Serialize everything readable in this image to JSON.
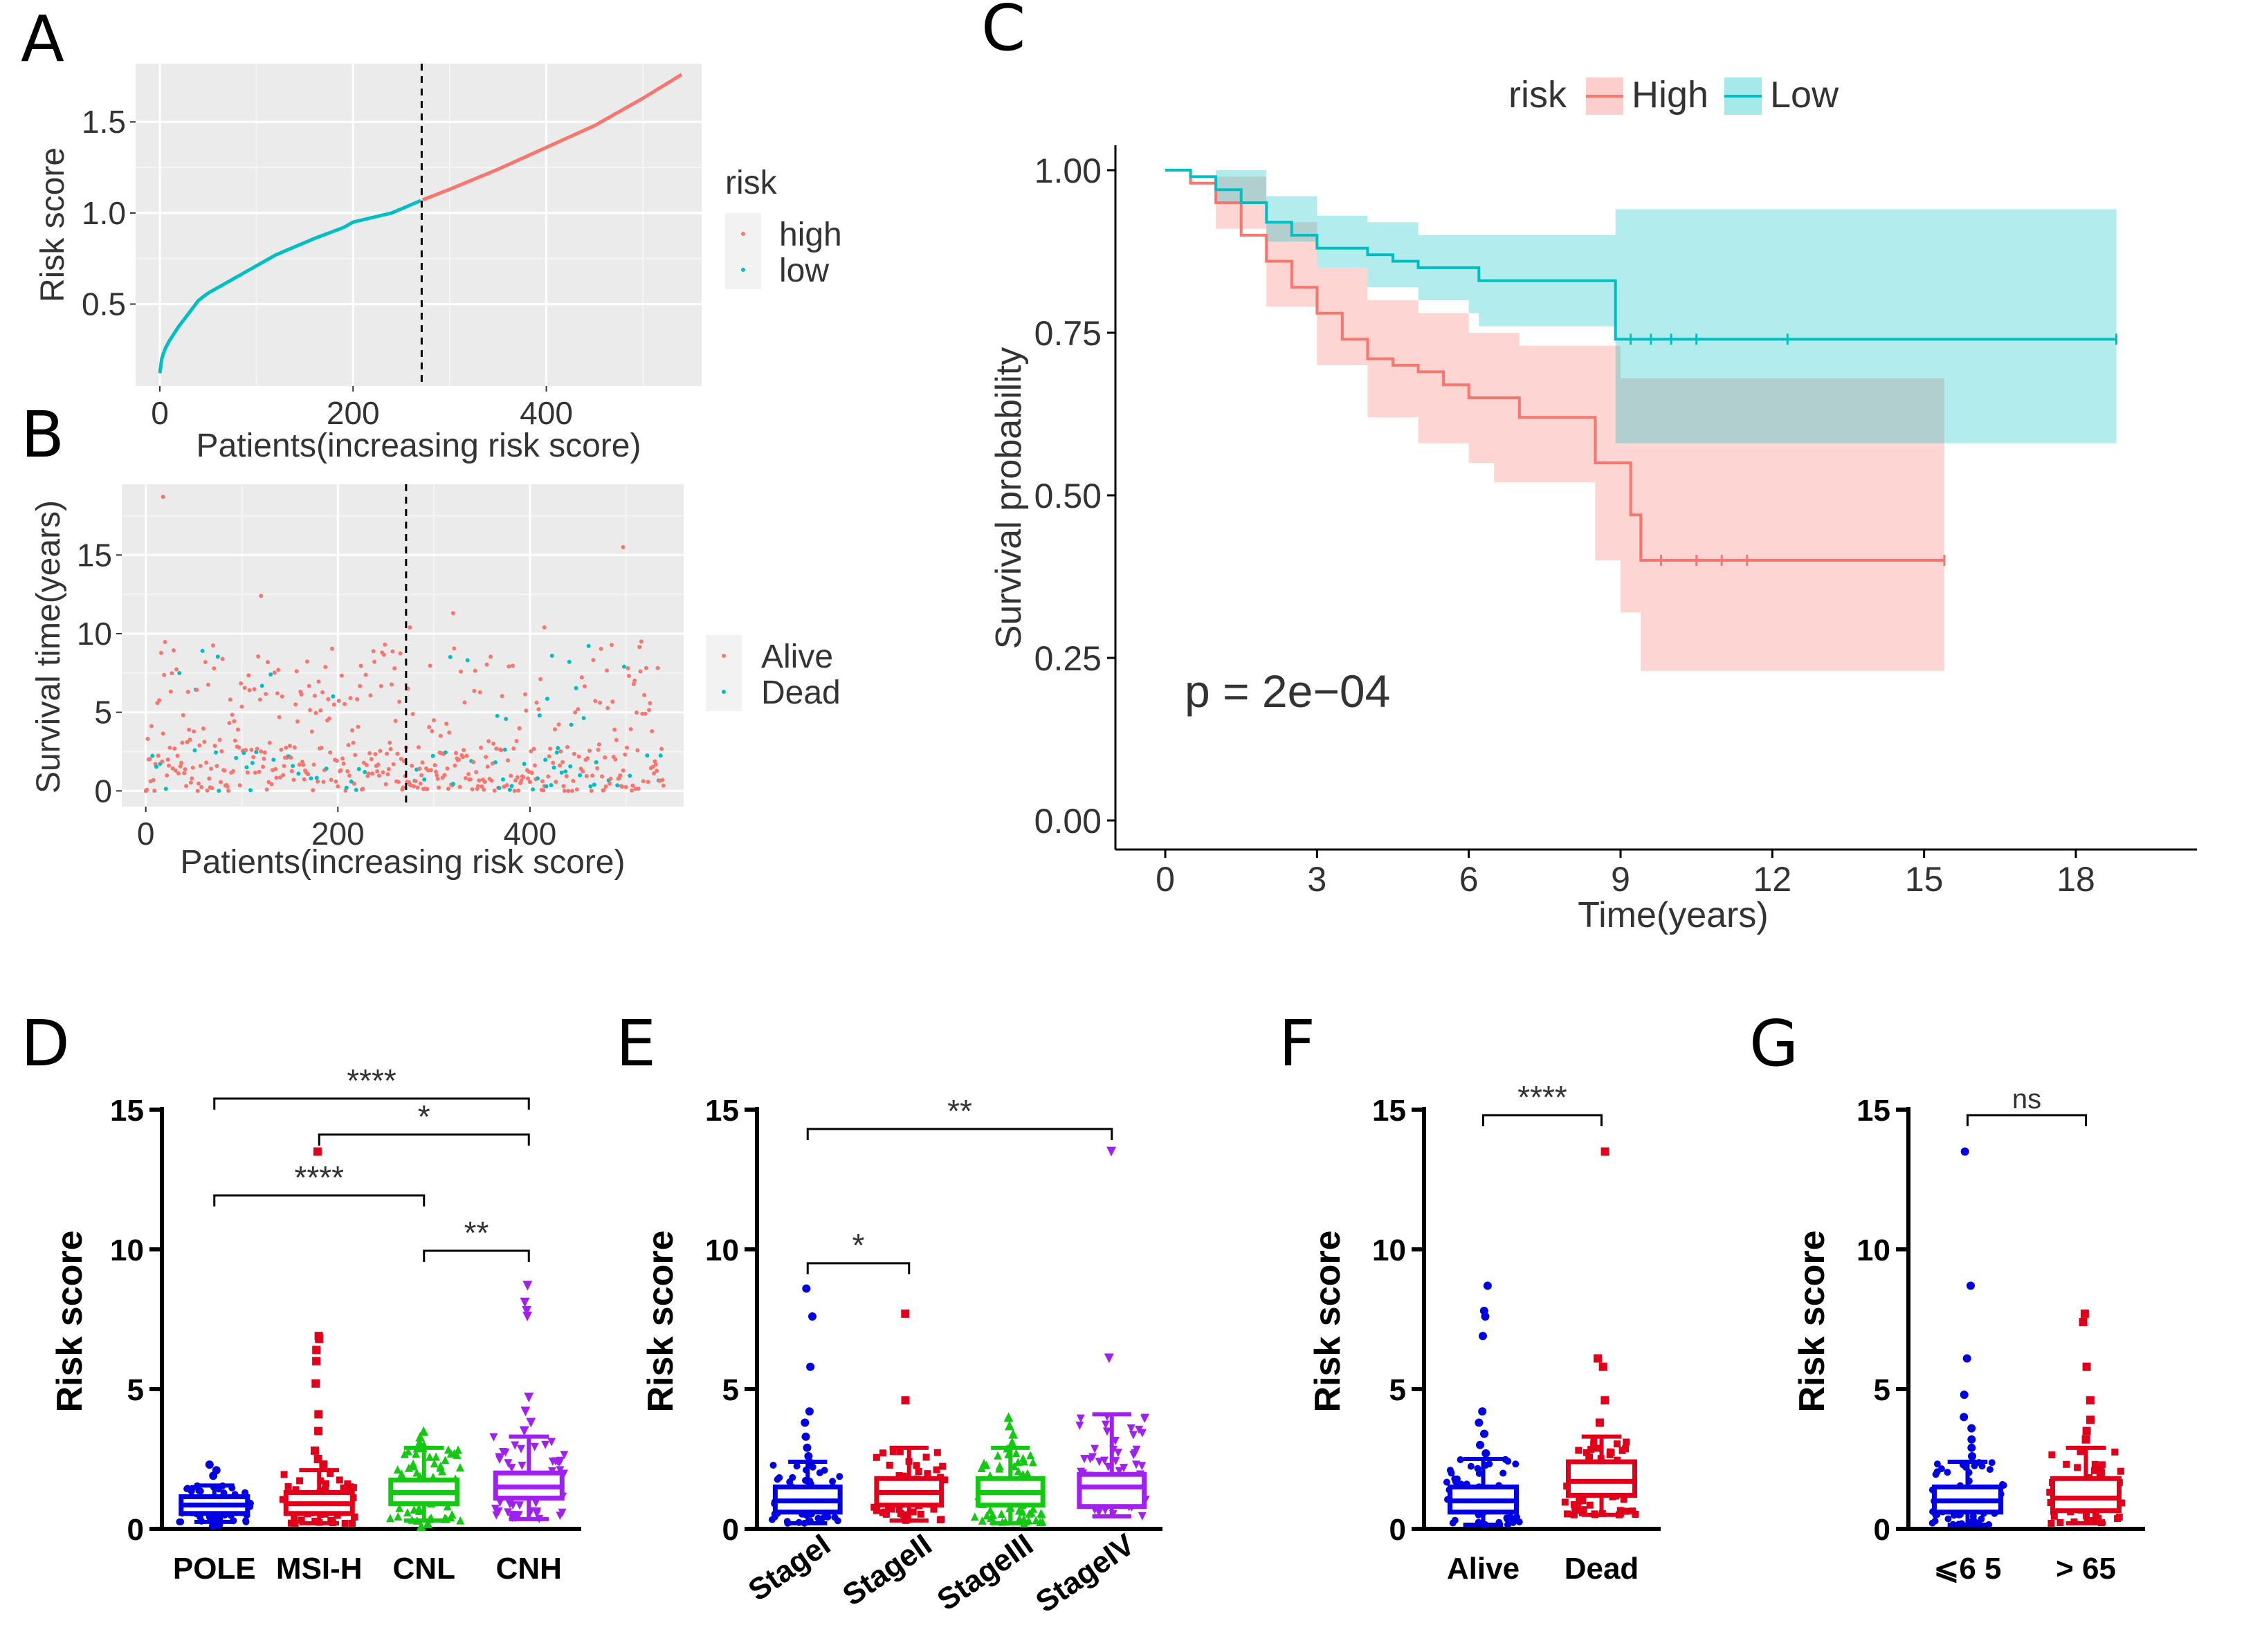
{
  "panels": {
    "A": "A",
    "B": "B",
    "C": "C",
    "D": "D",
    "E": "E",
    "F": "F",
    "G": "G"
  },
  "colors": {
    "high": "#F8766D",
    "low": "#00BFC4",
    "panel_bg": "#EBEBEB",
    "blue": "#0000E0",
    "red": "#E0001A",
    "green": "#14C814",
    "purple": "#A020F0"
  },
  "chart_data": [
    {
      "id": "A",
      "type": "scatter",
      "xlabel": "Patients(increasing risk score)",
      "ylabel": "Risk score",
      "xticks": [
        "0",
        "200",
        "400"
      ],
      "yticks": [
        "0.5",
        "1.0",
        "1.5"
      ],
      "xlim": [
        0,
        550
      ],
      "ylim": [
        0.05,
        1.82
      ],
      "cutoff_x": 271,
      "legend": {
        "title": "risk",
        "items": [
          "high",
          "low"
        ],
        "position": "right"
      },
      "curve": [
        [
          0,
          0.12
        ],
        [
          2,
          0.2
        ],
        [
          5,
          0.25
        ],
        [
          10,
          0.3
        ],
        [
          20,
          0.38
        ],
        [
          30,
          0.45
        ],
        [
          40,
          0.52
        ],
        [
          50,
          0.56
        ],
        [
          80,
          0.65
        ],
        [
          120,
          0.77
        ],
        [
          160,
          0.86
        ],
        [
          190,
          0.92
        ],
        [
          200,
          0.95
        ],
        [
          240,
          1.0
        ],
        [
          271,
          1.07
        ],
        [
          300,
          1.13
        ],
        [
          350,
          1.24
        ],
        [
          400,
          1.36
        ],
        [
          450,
          1.48
        ],
        [
          500,
          1.63
        ],
        [
          540,
          1.76
        ]
      ]
    },
    {
      "id": "B",
      "type": "scatter",
      "xlabel": "Patients(increasing risk score)",
      "ylabel": "Survival time(years)",
      "xticks": [
        "0",
        "200",
        "400"
      ],
      "yticks": [
        "0",
        "5",
        "10",
        "15"
      ],
      "xlim": [
        -25,
        560
      ],
      "ylim": [
        -1,
        19.5
      ],
      "cutoff_x": 271,
      "legend": {
        "items": [
          "Alive",
          "Dead"
        ],
        "position": "right"
      },
      "points_note": "approximately 540 patients; values scattered mostly between 0 and 10 years with a few outliers (18.7, 15.5, 12.4, 11.3)"
    },
    {
      "id": "C",
      "type": "line",
      "xlabel": "Time(years)",
      "ylabel": "Survival probability",
      "xticks": [
        "0",
        "3",
        "6",
        "9",
        "12",
        "15",
        "18"
      ],
      "yticks": [
        "0.00",
        "0.25",
        "0.50",
        "0.75",
        "1.00"
      ],
      "xlim": [
        -1,
        20.5
      ],
      "ylim": [
        -0.05,
        1.04
      ],
      "annotation": "p = 2e−04",
      "legend": {
        "title": "risk",
        "items": [
          "High",
          "Low"
        ],
        "position": "top"
      },
      "series": [
        {
          "name": "High",
          "steps": [
            [
              0,
              1.0
            ],
            [
              0.5,
              0.98
            ],
            [
              1,
              0.95
            ],
            [
              1.5,
              0.9
            ],
            [
              2,
              0.86
            ],
            [
              2.5,
              0.82
            ],
            [
              3,
              0.78
            ],
            [
              3.5,
              0.74
            ],
            [
              4,
              0.71
            ],
            [
              4.5,
              0.7
            ],
            [
              5,
              0.69
            ],
            [
              5.5,
              0.67
            ],
            [
              6,
              0.65
            ],
            [
              7,
              0.62
            ],
            [
              8,
              0.62
            ],
            [
              8.5,
              0.55
            ],
            [
              9,
              0.55
            ],
            [
              9.2,
              0.47
            ],
            [
              9.4,
              0.4
            ],
            [
              15.4,
              0.4
            ]
          ],
          "ci_low": [
            [
              0,
              1.0
            ],
            [
              1,
              0.91
            ],
            [
              2,
              0.79
            ],
            [
              3,
              0.7
            ],
            [
              4,
              0.62
            ],
            [
              5,
              0.58
            ],
            [
              6,
              0.55
            ],
            [
              6.5,
              0.52
            ],
            [
              8.5,
              0.4
            ],
            [
              9,
              0.32
            ],
            [
              9.4,
              0.23
            ],
            [
              15.4,
              0.23
            ]
          ],
          "ci_high": [
            [
              0,
              1.0
            ],
            [
              1,
              0.99
            ],
            [
              2,
              0.92
            ],
            [
              3,
              0.85
            ],
            [
              4,
              0.8
            ],
            [
              5,
              0.78
            ],
            [
              6,
              0.75
            ],
            [
              7,
              0.73
            ],
            [
              9,
              0.73
            ],
            [
              9,
              0.68
            ],
            [
              15.4,
              0.68
            ]
          ]
        },
        {
          "name": "Low",
          "steps": [
            [
              0,
              1.0
            ],
            [
              0.5,
              0.99
            ],
            [
              1,
              0.97
            ],
            [
              1.5,
              0.95
            ],
            [
              2,
              0.92
            ],
            [
              2.5,
              0.9
            ],
            [
              3,
              0.88
            ],
            [
              4,
              0.87
            ],
            [
              4.5,
              0.86
            ],
            [
              5,
              0.85
            ],
            [
              6,
              0.85
            ],
            [
              6.2,
              0.83
            ],
            [
              8.8,
              0.83
            ],
            [
              8.9,
              0.74
            ],
            [
              18.8,
              0.74
            ]
          ],
          "ci_low": [
            [
              0,
              1.0
            ],
            [
              1,
              0.95
            ],
            [
              2,
              0.89
            ],
            [
              3,
              0.85
            ],
            [
              4,
              0.82
            ],
            [
              5,
              0.8
            ],
            [
              6,
              0.78
            ],
            [
              6.2,
              0.76
            ],
            [
              8.8,
              0.76
            ],
            [
              8.9,
              0.58
            ],
            [
              18.8,
              0.58
            ]
          ],
          "ci_high": [
            [
              0,
              1.0
            ],
            [
              1,
              1.0
            ],
            [
              2,
              0.96
            ],
            [
              3,
              0.93
            ],
            [
              4,
              0.92
            ],
            [
              5,
              0.9
            ],
            [
              6.2,
              0.9
            ],
            [
              8.8,
              0.9
            ],
            [
              8.9,
              0.94
            ],
            [
              18.8,
              0.94
            ]
          ]
        }
      ]
    },
    {
      "id": "D",
      "type": "box",
      "ylabel": "Risk score",
      "yticks": [
        "0",
        "5",
        "10",
        "15"
      ],
      "ylim": [
        0,
        15
      ],
      "categories": [
        "POLE",
        "MSI-H",
        "CNL",
        "CNH"
      ],
      "boxes": [
        {
          "q1": 0.55,
          "median": 0.85,
          "q3": 1.15,
          "whisker_low": 0.25,
          "whisker_high": 1.55,
          "outliers": [
            1.9,
            2.1,
            2.3,
            0.1,
            0.15
          ]
        },
        {
          "q1": 0.55,
          "median": 0.9,
          "q3": 1.3,
          "whisker_low": 0.2,
          "whisker_high": 2.1,
          "outliers": [
            2.3,
            2.5,
            2.8,
            3.5,
            4.1,
            5.2,
            6.0,
            6.4,
            6.8,
            6.9,
            13.5
          ]
        },
        {
          "q1": 0.9,
          "median": 1.3,
          "q3": 1.75,
          "whisker_low": 0.3,
          "whisker_high": 2.9,
          "outliers": [
            3.0,
            3.1,
            3.3,
            3.5,
            0.2,
            0.1
          ]
        },
        {
          "q1": 1.1,
          "median": 1.5,
          "q3": 2.0,
          "whisker_low": 0.35,
          "whisker_high": 3.3,
          "outliers": [
            3.5,
            3.8,
            4.2,
            4.7,
            7.6,
            7.8,
            8.1,
            8.7
          ]
        }
      ],
      "significance": [
        {
          "from": 0,
          "to": 3,
          "label": "****"
        },
        {
          "from": 1,
          "to": 3,
          "label": "*"
        },
        {
          "from": 0,
          "to": 2,
          "label": "****"
        },
        {
          "from": 2,
          "to": 3,
          "label": "**"
        }
      ]
    },
    {
      "id": "E",
      "type": "box",
      "ylabel": "Risk score",
      "yticks": [
        "0",
        "5",
        "10",
        "15"
      ],
      "ylim": [
        0,
        15
      ],
      "categories": [
        "StageI",
        "StageII",
        "StageIII",
        "StageIV"
      ],
      "boxes": [
        {
          "q1": 0.6,
          "median": 1.0,
          "q3": 1.5,
          "whisker_low": 0.2,
          "whisker_high": 2.4,
          "outliers": [
            2.6,
            2.9,
            3.3,
            3.8,
            4.2,
            5.8,
            7.6,
            8.6
          ]
        },
        {
          "q1": 0.85,
          "median": 1.3,
          "q3": 1.8,
          "whisker_low": 0.3,
          "whisker_high": 2.9,
          "outliers": [
            4.6,
            7.7
          ]
        },
        {
          "q1": 0.85,
          "median": 1.3,
          "q3": 1.8,
          "whisker_low": 0.2,
          "whisker_high": 2.9,
          "outliers": [
            3.1,
            3.4,
            3.7,
            4.0
          ]
        },
        {
          "q1": 0.8,
          "median": 1.5,
          "q3": 1.95,
          "whisker_low": 0.45,
          "whisker_high": 4.1,
          "outliers": [
            6.1,
            13.5
          ]
        }
      ],
      "significance": [
        {
          "from": 0,
          "to": 3,
          "label": "**"
        },
        {
          "from": 0,
          "to": 1,
          "label": "*"
        }
      ]
    },
    {
      "id": "F",
      "type": "box",
      "ylabel": "Risk score",
      "yticks": [
        "0",
        "5",
        "10",
        "15"
      ],
      "ylim": [
        0,
        15
      ],
      "categories": [
        "Alive",
        "Dead"
      ],
      "boxes": [
        {
          "q1": 0.6,
          "median": 1.0,
          "q3": 1.5,
          "whisker_low": 0.15,
          "whisker_high": 2.5,
          "outliers": [
            2.7,
            3.0,
            3.4,
            3.8,
            4.2,
            6.9,
            7.6,
            7.8,
            8.7
          ]
        },
        {
          "q1": 1.2,
          "median": 1.7,
          "q3": 2.4,
          "whisker_low": 0.5,
          "whisker_high": 3.3,
          "outliers": [
            3.8,
            4.6,
            5.8,
            6.1,
            13.5
          ]
        }
      ],
      "significance": [
        {
          "from": 0,
          "to": 1,
          "label": "****"
        }
      ]
    },
    {
      "id": "G",
      "type": "box",
      "ylabel": "Risk score",
      "yticks": [
        "0",
        "5",
        "10",
        "15"
      ],
      "ylim": [
        0,
        15
      ],
      "categories": [
        "⩽6 5",
        "> 65"
      ],
      "boxes": [
        {
          "q1": 0.6,
          "median": 1.0,
          "q3": 1.5,
          "whisker_low": 0.15,
          "whisker_high": 2.4,
          "outliers": [
            2.6,
            2.9,
            3.2,
            3.6,
            4.0,
            4.8,
            6.1,
            8.7,
            13.5
          ]
        },
        {
          "q1": 0.65,
          "median": 1.1,
          "q3": 1.8,
          "whisker_low": 0.2,
          "whisker_high": 2.9,
          "outliers": [
            3.2,
            3.5,
            3.9,
            4.6,
            5.8,
            7.4,
            7.7
          ]
        }
      ],
      "significance": [
        {
          "from": 0,
          "to": 1,
          "label": "ns"
        }
      ]
    }
  ]
}
